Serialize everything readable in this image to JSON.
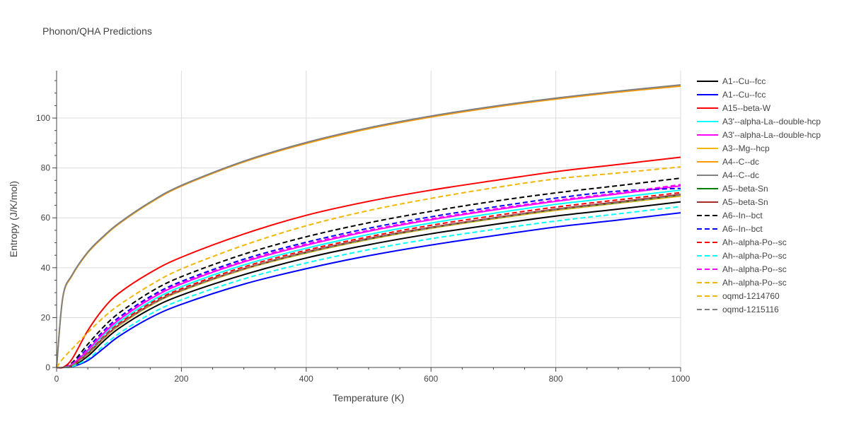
{
  "chart_data": {
    "type": "line",
    "title": "Phonon/QHA Predictions",
    "xlabel": "Temperature (K)",
    "ylabel": "Entropy (J/K/mol)",
    "xlim": [
      0,
      1000
    ],
    "ylim": [
      0,
      119
    ],
    "xticks": [
      0,
      200,
      400,
      600,
      800,
      1000
    ],
    "xtick_labels": [
      "0",
      "200",
      "400",
      "600",
      "800",
      "1000"
    ],
    "yticks": [
      0,
      20,
      40,
      60,
      80,
      100
    ],
    "ytick_labels": [
      "0",
      "20",
      "40",
      "60",
      "80",
      "100"
    ],
    "grid": true,
    "legend_position": "right",
    "x": [
      0,
      10,
      25,
      50,
      75,
      100,
      150,
      200,
      300,
      400,
      500,
      600,
      700,
      800,
      900,
      1000
    ],
    "series": [
      {
        "name": "A1--Cu--fcc",
        "color": "#000000",
        "dash": "solid",
        "values": [
          0,
          0,
          0.6,
          4.5,
          10.5,
          15.7,
          23.4,
          29.0,
          37.2,
          43.9,
          49.2,
          53.6,
          57.3,
          60.7,
          63.5,
          66.4
        ]
      },
      {
        "name": "A1--Cu--fcc",
        "color": "#0000ff",
        "dash": "solid",
        "values": [
          0,
          0,
          0.3,
          2.8,
          7.6,
          12.5,
          19.9,
          25.3,
          33.4,
          39.6,
          44.8,
          49.1,
          52.8,
          56.3,
          59.1,
          62.0
        ]
      },
      {
        "name": "A15--beta-W",
        "color": "#ff0000",
        "dash": "solid",
        "values": [
          0,
          0,
          3.5,
          14.8,
          23.6,
          29.8,
          38.0,
          44.2,
          53.5,
          61.0,
          66.6,
          71.1,
          74.9,
          78.5,
          81.4,
          84.3
        ]
      },
      {
        "name": "A3'--alpha-La--double-hcp",
        "color": "#00ffff",
        "dash": "solid",
        "values": [
          0,
          0,
          1.1,
          6.4,
          12.9,
          18.3,
          26.4,
          32.4,
          41.1,
          47.8,
          53.3,
          57.9,
          61.8,
          65.4,
          68.2,
          71.1
        ]
      },
      {
        "name": "A3'--alpha-La--double-hcp",
        "color": "#ff00ff",
        "dash": "solid",
        "values": [
          0,
          0,
          1.3,
          6.9,
          13.6,
          19.1,
          27.4,
          33.5,
          42.3,
          49.0,
          54.6,
          59.2,
          63.1,
          66.6,
          69.6,
          72.8
        ]
      },
      {
        "name": "A3--Mg--hcp",
        "color": "#f2b705",
        "dash": "solid",
        "values": [
          0,
          0,
          0.8,
          5.3,
          11.5,
          16.8,
          24.8,
          30.7,
          39.3,
          45.9,
          51.3,
          55.8,
          59.6,
          63.0,
          65.9,
          68.7
        ]
      },
      {
        "name": "A4--C--dc",
        "color": "#ff9900",
        "dash": "solid",
        "values": [
          0,
          28.0,
          36.9,
          46.0,
          52.3,
          57.6,
          66.0,
          72.7,
          82.4,
          89.8,
          95.7,
          100.4,
          104.3,
          107.6,
          110.4,
          112.8
        ]
      },
      {
        "name": "A4--C--dc",
        "color": "#808080",
        "dash": "solid",
        "values": [
          0,
          28.3,
          37.2,
          46.3,
          52.6,
          57.9,
          66.3,
          73.0,
          82.7,
          90.2,
          96.1,
          100.8,
          104.7,
          108.0,
          110.8,
          113.3
        ]
      },
      {
        "name": "A5--beta-Sn",
        "color": "#008000",
        "dash": "solid",
        "values": [
          0,
          0,
          0.9,
          5.5,
          11.7,
          17.0,
          25.0,
          30.9,
          39.5,
          46.1,
          51.5,
          56.0,
          59.8,
          63.3,
          66.1,
          69.1
        ]
      },
      {
        "name": "A5--beta-Sn",
        "color": "#a52a2a",
        "dash": "solid",
        "values": [
          0,
          0,
          0.9,
          5.6,
          11.8,
          17.1,
          25.1,
          31.0,
          39.6,
          46.3,
          51.7,
          56.2,
          60.0,
          63.5,
          66.4,
          69.4
        ]
      },
      {
        "name": "A6--In--bct",
        "color": "#000000",
        "dash": "dash",
        "values": [
          0,
          0,
          1.9,
          9.3,
          16.2,
          21.8,
          30.2,
          36.4,
          45.4,
          52.4,
          58.0,
          62.6,
          66.6,
          70.0,
          72.9,
          75.9
        ]
      },
      {
        "name": "A6--In--bct",
        "color": "#0000ff",
        "dash": "dash",
        "values": [
          0,
          0,
          1.5,
          7.9,
          14.6,
          20.1,
          28.4,
          34.5,
          43.4,
          50.2,
          55.8,
          60.4,
          64.3,
          67.9,
          70.7,
          71.8
        ]
      },
      {
        "name": "Ah--alpha-Po--sc",
        "color": "#ff0000",
        "dash": "dash",
        "values": [
          0,
          0,
          1.0,
          5.9,
          12.2,
          17.6,
          25.7,
          31.6,
          40.3,
          47.0,
          52.4,
          57.0,
          60.8,
          64.3,
          67.2,
          70.1
        ]
      },
      {
        "name": "Ah--alpha-Po--sc",
        "color": "#00ffff",
        "dash": "dash",
        "values": [
          0,
          0,
          0.4,
          3.4,
          8.6,
          13.6,
          21.4,
          27.1,
          35.5,
          41.9,
          47.2,
          51.6,
          55.3,
          58.7,
          61.6,
          64.5
        ]
      },
      {
        "name": "Ah--alpha-Po--sc",
        "color": "#ff00ff",
        "dash": "dash",
        "values": [
          0,
          0,
          1.4,
          7.2,
          14.0,
          19.5,
          27.8,
          33.9,
          42.7,
          49.5,
          55.0,
          59.6,
          63.5,
          67.0,
          70.0,
          73.3
        ]
      },
      {
        "name": "Ah--alpha-Po--sc",
        "color": "#f2b705",
        "dash": "dash",
        "values": [
          0,
          3.5,
          7.5,
          14.0,
          20.0,
          25.0,
          33.0,
          39.5,
          49.0,
          56.8,
          62.9,
          67.8,
          72.0,
          75.6,
          78.0,
          80.4
        ]
      },
      {
        "name": "oqmd-1214760",
        "color": "#f2b705",
        "dash": "dash",
        "values": [
          0,
          0,
          0.8,
          5.3,
          11.5,
          16.8,
          24.8,
          30.7,
          39.3,
          45.9,
          51.3,
          55.8,
          59.6,
          63.0,
          65.9,
          68.7
        ]
      },
      {
        "name": "oqmd-1215116",
        "color": "#808080",
        "dash": "dash",
        "values": [
          0,
          0,
          0.9,
          5.5,
          11.7,
          17.0,
          25.0,
          30.9,
          39.5,
          46.1,
          51.5,
          56.0,
          59.8,
          63.3,
          66.1,
          69.1
        ]
      }
    ]
  }
}
